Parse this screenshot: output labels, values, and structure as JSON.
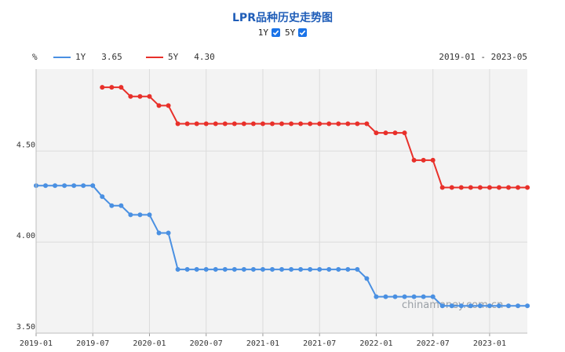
{
  "header": {
    "title": "LPR品种历史走势图",
    "toggles": [
      {
        "label": "1Y",
        "checked": true
      },
      {
        "label": "5Y",
        "checked": true
      }
    ]
  },
  "legend": {
    "unit": "%",
    "series": [
      {
        "name": "1Y",
        "value": "3.65",
        "color": "#4a90e2"
      },
      {
        "name": "5Y",
        "value": "4.30",
        "color": "#e8302a"
      }
    ],
    "date_range": "2019-01 - 2023-05"
  },
  "watermark": "chinamoney.com.cn",
  "chart_data": {
    "type": "line",
    "x_ticks": [
      "2019-01",
      "2019-07",
      "2020-01",
      "2020-07",
      "2021-01",
      "2021-07",
      "2022-01",
      "2022-07",
      "2023-01"
    ],
    "y_ticks": [
      "3.50",
      "4.00",
      "4.50"
    ],
    "ylim": [
      3.5,
      4.95
    ],
    "grid": true,
    "series": [
      {
        "name": "1Y",
        "color": "#4a90e2",
        "x": [
          "2019-01",
          "2019-02",
          "2019-03",
          "2019-04",
          "2019-05",
          "2019-06",
          "2019-07",
          "2019-08",
          "2019-09",
          "2019-10",
          "2019-11",
          "2019-12",
          "2020-01",
          "2020-02",
          "2020-03",
          "2020-04",
          "2020-05",
          "2020-06",
          "2020-07",
          "2020-08",
          "2020-09",
          "2020-10",
          "2020-11",
          "2020-12",
          "2021-01",
          "2021-02",
          "2021-03",
          "2021-04",
          "2021-05",
          "2021-06",
          "2021-07",
          "2021-08",
          "2021-09",
          "2021-10",
          "2021-11",
          "2021-12",
          "2022-01",
          "2022-02",
          "2022-03",
          "2022-04",
          "2022-05",
          "2022-06",
          "2022-07",
          "2022-08",
          "2022-09",
          "2022-10",
          "2022-11",
          "2022-12",
          "2023-01",
          "2023-02",
          "2023-03",
          "2023-04",
          "2023-05"
        ],
        "values": [
          4.31,
          4.31,
          4.31,
          4.31,
          4.31,
          4.31,
          4.31,
          4.25,
          4.2,
          4.2,
          4.15,
          4.15,
          4.15,
          4.05,
          4.05,
          3.85,
          3.85,
          3.85,
          3.85,
          3.85,
          3.85,
          3.85,
          3.85,
          3.85,
          3.85,
          3.85,
          3.85,
          3.85,
          3.85,
          3.85,
          3.85,
          3.85,
          3.85,
          3.85,
          3.85,
          3.8,
          3.7,
          3.7,
          3.7,
          3.7,
          3.7,
          3.7,
          3.7,
          3.65,
          3.65,
          3.65,
          3.65,
          3.65,
          3.65,
          3.65,
          3.65,
          3.65,
          3.65
        ]
      },
      {
        "name": "5Y",
        "color": "#e8302a",
        "x": [
          "2019-08",
          "2019-09",
          "2019-10",
          "2019-11",
          "2019-12",
          "2020-01",
          "2020-02",
          "2020-03",
          "2020-04",
          "2020-05",
          "2020-06",
          "2020-07",
          "2020-08",
          "2020-09",
          "2020-10",
          "2020-11",
          "2020-12",
          "2021-01",
          "2021-02",
          "2021-03",
          "2021-04",
          "2021-05",
          "2021-06",
          "2021-07",
          "2021-08",
          "2021-09",
          "2021-10",
          "2021-11",
          "2021-12",
          "2022-01",
          "2022-02",
          "2022-03",
          "2022-04",
          "2022-05",
          "2022-06",
          "2022-07",
          "2022-08",
          "2022-09",
          "2022-10",
          "2022-11",
          "2022-12",
          "2023-01",
          "2023-02",
          "2023-03",
          "2023-04",
          "2023-05"
        ],
        "values": [
          4.85,
          4.85,
          4.85,
          4.8,
          4.8,
          4.8,
          4.75,
          4.75,
          4.65,
          4.65,
          4.65,
          4.65,
          4.65,
          4.65,
          4.65,
          4.65,
          4.65,
          4.65,
          4.65,
          4.65,
          4.65,
          4.65,
          4.65,
          4.65,
          4.65,
          4.65,
          4.65,
          4.65,
          4.65,
          4.6,
          4.6,
          4.6,
          4.6,
          4.45,
          4.45,
          4.45,
          4.3,
          4.3,
          4.3,
          4.3,
          4.3,
          4.3,
          4.3,
          4.3,
          4.3,
          4.3
        ]
      }
    ]
  }
}
